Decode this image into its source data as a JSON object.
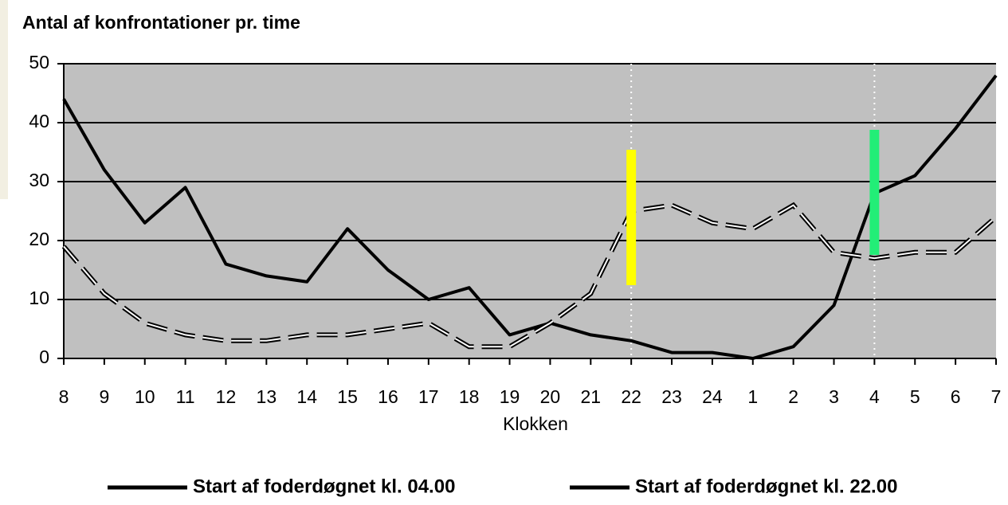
{
  "chart_data": {
    "type": "line",
    "title": "Antal af konfrontationer pr. time",
    "x_label": "Klokken",
    "categories": [
      "8",
      "9",
      "10",
      "11",
      "12",
      "13",
      "14",
      "15",
      "16",
      "17",
      "18",
      "19",
      "20",
      "21",
      "22",
      "23",
      "24",
      "1",
      "2",
      "3",
      "4",
      "5",
      "6",
      "7"
    ],
    "series": [
      {
        "name": "Start af foderdøgnet kl. 04.00",
        "color": "#000000",
        "dashed": false,
        "values": [
          44,
          32,
          23,
          29,
          16,
          14,
          13,
          22,
          15,
          10,
          12,
          4,
          6,
          4,
          3,
          1,
          1,
          0,
          2,
          9,
          28,
          31,
          39,
          48
        ]
      },
      {
        "name": "Start af foderdøgnet kl. 22.00",
        "color": "#000000",
        "dashed": true,
        "values": [
          19,
          11,
          6,
          4,
          3,
          3,
          4,
          4,
          5,
          6,
          2,
          2,
          6,
          11,
          25,
          26,
          23,
          22,
          26,
          18,
          17,
          18,
          18,
          24
        ]
      }
    ],
    "ylim": [
      0,
      50
    ],
    "yticks": [
      0,
      10,
      20,
      30,
      40,
      50
    ],
    "grid": true,
    "plot_background": "#c0c0c0"
  }
}
